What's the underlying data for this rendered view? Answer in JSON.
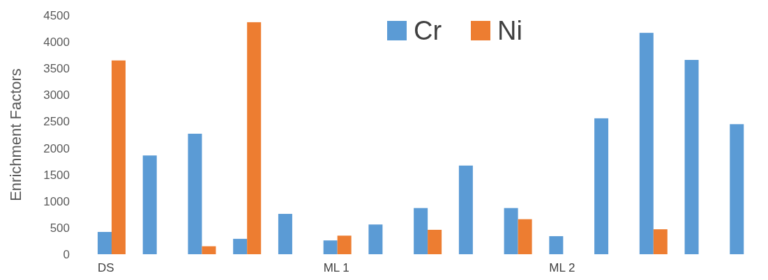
{
  "chart_data": {
    "type": "bar",
    "ylabel": "Enrichment Factors",
    "categories": [
      "DS",
      null,
      null,
      null,
      null,
      "ML 1",
      null,
      null,
      null,
      null,
      "ML 2",
      null,
      null,
      null,
      null
    ],
    "series": [
      {
        "name": "Cr",
        "color": "#5b9bd5",
        "values": [
          420,
          1860,
          2270,
          290,
          760,
          260,
          560,
          870,
          1670,
          870,
          340,
          2560,
          4170,
          3660,
          2450
        ]
      },
      {
        "name": "Ni",
        "color": "#ed7d31",
        "values": [
          3650,
          0,
          150,
          4370,
          0,
          350,
          0,
          460,
          0,
          660,
          0,
          0,
          470,
          0,
          0
        ]
      }
    ],
    "ylim": [
      0,
      4500
    ],
    "yticks": [
      0,
      500,
      1000,
      1500,
      2000,
      2500,
      3000,
      3500,
      4000,
      4500
    ],
    "legend": "top"
  }
}
